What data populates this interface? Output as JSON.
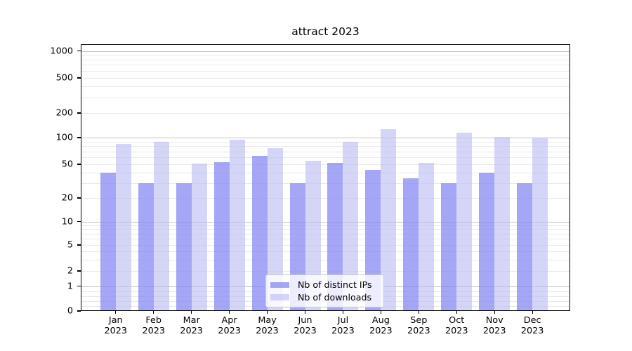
{
  "chart_data": {
    "type": "bar",
    "title": "attract 2023",
    "categories": [
      "Jan",
      "Feb",
      "Mar",
      "Apr",
      "May",
      "Jun",
      "Jul",
      "Aug",
      "Sep",
      "Oct",
      "Nov",
      "Dec"
    ],
    "category_year_suffix": "2023",
    "series": [
      {
        "name": "Nb of distinct IPs",
        "color": "#8585f3",
        "fill_alpha": 0.73,
        "values": [
          40,
          30,
          30,
          53,
          62,
          30,
          52,
          43,
          34,
          30,
          40,
          30
        ]
      },
      {
        "name": "Nb of downloads",
        "color": "#bbbbf2",
        "fill_alpha": 0.62,
        "values": [
          85,
          89,
          51,
          94,
          76,
          55,
          90,
          126,
          52,
          116,
          102,
          100
        ]
      }
    ],
    "y_axis": {
      "scale": "symlog",
      "tick_values": [
        0,
        1,
        2,
        5,
        10,
        20,
        50,
        100,
        200,
        500,
        1000
      ],
      "tick_labels": [
        "0",
        "1",
        "2",
        "5",
        "10",
        "20",
        "50",
        "100",
        "200",
        "500",
        "1000"
      ]
    },
    "grid": true,
    "legend_position": "lower center",
    "grid_minor_color": "#e9e9e9",
    "grid_major_color": "#c3c3c3"
  }
}
